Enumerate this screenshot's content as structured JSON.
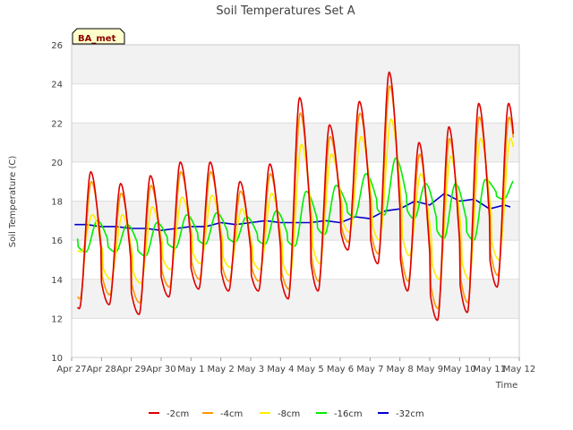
{
  "chart_data": {
    "type": "line",
    "title": "Soil Temperatures Set A",
    "xlabel": "Time",
    "ylabel": "Soil Temperature (C)",
    "site_tag": "BA_met",
    "ylim": [
      10,
      26
    ],
    "y_ticks": [
      10,
      12,
      14,
      16,
      18,
      20,
      22,
      24,
      26
    ],
    "xlim": [
      "Apr 27",
      "May 12"
    ],
    "x_ticks": [
      "Apr 27",
      "Apr 28",
      "Apr 29",
      "Apr 30",
      "May 1",
      "May 2",
      "May 3",
      "May 4",
      "May 5",
      "May 6",
      "May 7",
      "May 8",
      "May 9",
      "May 10",
      "May 11",
      "May 12"
    ],
    "background": "alternating grey bands",
    "legend_position": "bottom",
    "series": [
      {
        "name": "-2cm",
        "color": "#dd0000",
        "min": [
          12.5,
          12.7,
          12.2,
          13.1,
          13.5,
          13.4,
          13.4,
          13.0,
          13.4,
          15.5,
          14.8,
          13.4,
          11.9,
          12.3,
          13.6
        ],
        "max": [
          19.5,
          18.9,
          19.3,
          20.0,
          20.0,
          19.0,
          19.9,
          23.3,
          21.9,
          23.1,
          24.6,
          21.0,
          21.8,
          23.0
        ]
      },
      {
        "name": "-4cm",
        "color": "#ff9900",
        "min": [
          13.0,
          13.2,
          12.8,
          13.6,
          14.0,
          13.9,
          13.9,
          13.5,
          13.9,
          15.9,
          15.3,
          13.9,
          12.5,
          12.8,
          14.2
        ],
        "max": [
          19.0,
          18.4,
          18.8,
          19.5,
          19.5,
          18.5,
          19.4,
          22.5,
          21.3,
          22.5,
          23.9,
          20.4,
          21.2,
          22.3
        ]
      },
      {
        "name": "-8cm",
        "color": "#ffee00",
        "min": [
          15.4,
          14.0,
          13.8,
          14.5,
          14.8,
          14.6,
          14.5,
          14.2,
          14.8,
          16.4,
          16.0,
          15.2,
          14.0,
          14.0,
          15.0
        ],
        "max": [
          17.3,
          17.3,
          17.7,
          18.2,
          18.3,
          17.6,
          18.4,
          20.9,
          20.4,
          21.3,
          22.2,
          19.4,
          20.3,
          21.2
        ]
      },
      {
        "name": "-16cm",
        "color": "#00ee00",
        "min": [
          15.4,
          15.4,
          15.2,
          15.6,
          15.8,
          15.9,
          15.8,
          15.7,
          16.3,
          17.2,
          17.3,
          17.1,
          16.1,
          16.0,
          18.1
        ],
        "max": [
          17.0,
          16.8,
          16.9,
          17.3,
          17.4,
          17.2,
          17.5,
          18.5,
          18.8,
          19.4,
          20.2,
          18.9,
          18.9,
          19.1
        ]
      },
      {
        "name": "-32cm",
        "color": "#0000cc",
        "x": [
          0.1,
          0.5,
          1.0,
          1.5,
          2.0,
          2.5,
          3.0,
          3.5,
          4.0,
          4.5,
          5.0,
          5.5,
          6.0,
          6.5,
          7.0,
          7.5,
          8.0,
          8.5,
          9.0,
          9.5,
          10.0,
          10.5,
          11.0,
          11.5,
          12.0,
          12.5,
          13.0,
          13.5,
          14.0,
          14.5,
          14.7
        ],
        "values": [
          16.8,
          16.8,
          16.7,
          16.7,
          16.6,
          16.6,
          16.5,
          16.6,
          16.7,
          16.7,
          16.9,
          16.8,
          16.9,
          17.0,
          16.9,
          16.9,
          16.9,
          17.0,
          16.9,
          17.2,
          17.1,
          17.5,
          17.6,
          18.0,
          17.8,
          18.4,
          18.0,
          18.1,
          17.6,
          17.8,
          17.7
        ]
      }
    ]
  }
}
